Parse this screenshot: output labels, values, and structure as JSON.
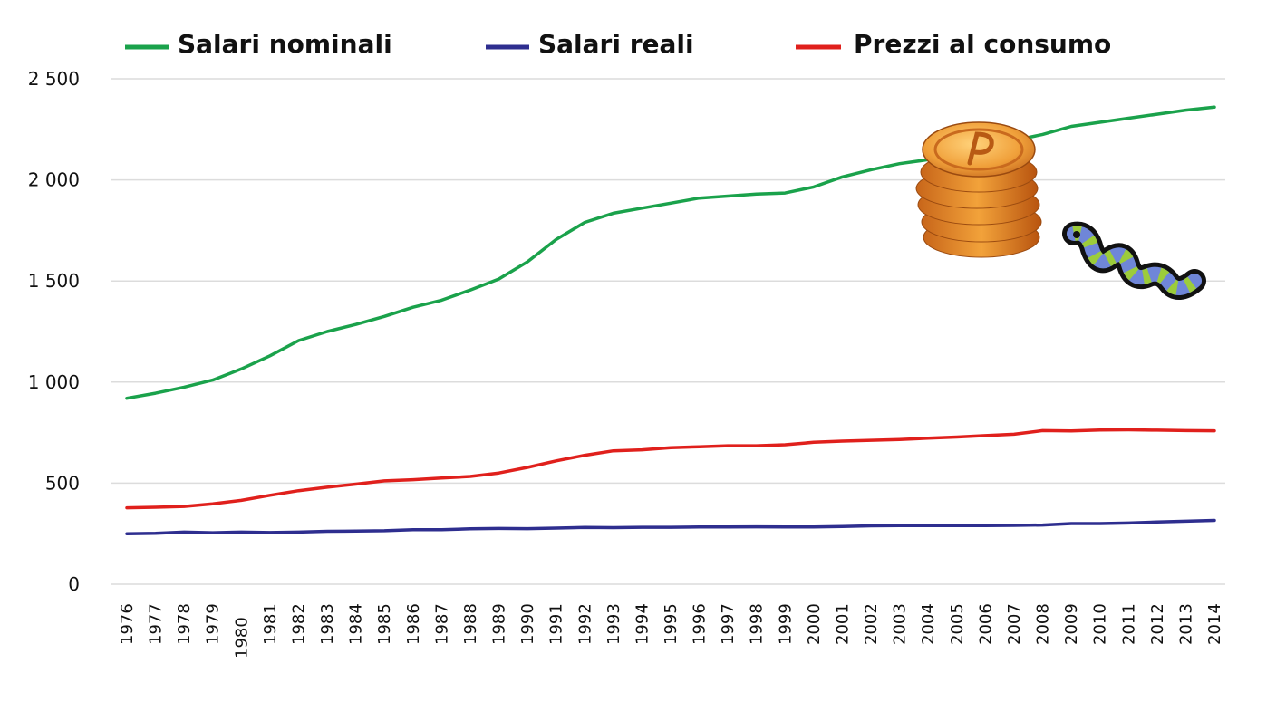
{
  "chart_data": {
    "type": "line",
    "title": "",
    "xlabel": "",
    "ylabel": "",
    "ylim": [
      0,
      2500
    ],
    "y_ticks": [
      0,
      500,
      1000,
      1500,
      2000,
      2500
    ],
    "y_tick_labels": [
      "0",
      "500",
      "1 000",
      "1 500",
      "2 000",
      "2 500"
    ],
    "grid": "horizontal",
    "legend_position": "top",
    "x": [
      "1976",
      "1977",
      "1978",
      "1979",
      "1980",
      "1981",
      "1982",
      "1983",
      "1984",
      "1985",
      "1986",
      "1987",
      "1988",
      "1989",
      "1990",
      "1991",
      "1992",
      "1993",
      "1994",
      "1995",
      "1996",
      "1997",
      "1998",
      "1999",
      "2000",
      "2001",
      "2002",
      "2003",
      "2004",
      "2005",
      "2006",
      "2007",
      "2008",
      "2009",
      "2010",
      "2011",
      "2012",
      "2013",
      "2014"
    ],
    "series": [
      {
        "name": "Salari nominali",
        "color": "#1aa24b",
        "values": [
          920,
          945,
          975,
          1010,
          1065,
          1130,
          1205,
          1250,
          1285,
          1325,
          1370,
          1405,
          1455,
          1510,
          1595,
          1705,
          1790,
          1835,
          1860,
          1885,
          1910,
          1920,
          1930,
          1935,
          1965,
          2015,
          2050,
          2080,
          2100,
          2140,
          2170,
          2195,
          2225,
          2265,
          2285,
          2305,
          2325,
          2345,
          2360
        ]
      },
      {
        "name": "Salari reali",
        "color": "#2e2e8f",
        "values": [
          250,
          252,
          258,
          255,
          258,
          256,
          258,
          262,
          263,
          265,
          270,
          270,
          274,
          276,
          275,
          278,
          281,
          280,
          282,
          282,
          283,
          283,
          284,
          283,
          283,
          286,
          289,
          290,
          290,
          290,
          290,
          291,
          293,
          300,
          300,
          303,
          308,
          312,
          316
        ]
      },
      {
        "name": "Prezzi al consumo",
        "color": "#e0201c",
        "values": [
          378,
          381,
          385,
          398,
          415,
          440,
          463,
          480,
          495,
          511,
          517,
          525,
          533,
          550,
          578,
          610,
          638,
          660,
          665,
          675,
          680,
          685,
          685,
          690,
          702,
          708,
          712,
          716,
          722,
          728,
          735,
          742,
          760,
          758,
          763,
          764,
          762,
          760,
          759
        ]
      }
    ]
  },
  "decorations": {
    "coin_stack": "coin-stack-icon",
    "worm": "worm-icon"
  }
}
